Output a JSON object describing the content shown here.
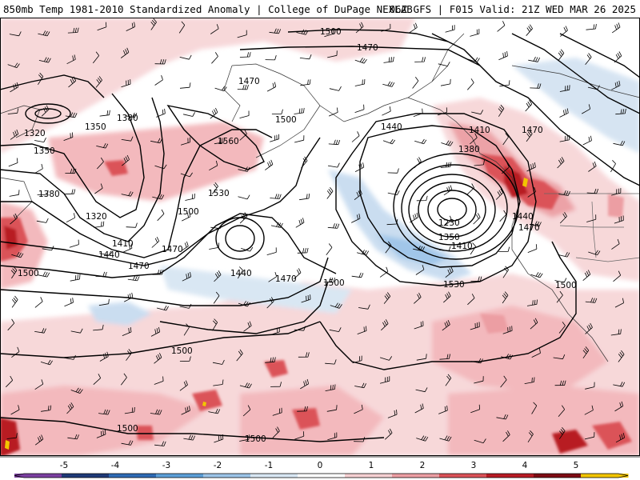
{
  "header": {
    "title_left": "850mb Temp 1981-2010 Standardized Anomaly | College of DuPage NEXLAB",
    "title_right": "06Z GFS | F015 Valid: 21Z WED MAR 26 2025"
  },
  "colorbar": {
    "ticks": [
      "-5",
      "-4",
      "-3",
      "-2",
      "-1",
      "0",
      "1",
      "2",
      "3",
      "4",
      "5"
    ],
    "colors": [
      "#7b3fa0",
      "#1f3a78",
      "#2f6bb5",
      "#5c9fd8",
      "#9cc4e8",
      "#d8e6f3",
      "#ffffff",
      "#f5d0d2",
      "#ec9ea3",
      "#db5258",
      "#b81b24",
      "#7e0c14",
      "#f2c500"
    ]
  },
  "contours": {
    "labels": [
      {
        "text": "1500"
      },
      {
        "text": "1470"
      },
      {
        "text": "1470"
      },
      {
        "text": "1440"
      },
      {
        "text": "1320"
      },
      {
        "text": "1350"
      },
      {
        "text": "1380"
      },
      {
        "text": "1500"
      },
      {
        "text": "1350"
      },
      {
        "text": "1560"
      },
      {
        "text": "1410"
      },
      {
        "text": "1470"
      },
      {
        "text": "1380"
      },
      {
        "text": "1380"
      },
      {
        "text": "1320"
      },
      {
        "text": "1530"
      },
      {
        "text": "1500"
      },
      {
        "text": "1410"
      },
      {
        "text": "1440"
      },
      {
        "text": "1470"
      },
      {
        "text": "1500"
      },
      {
        "text": "1470"
      },
      {
        "text": "1440"
      },
      {
        "text": "1470"
      },
      {
        "text": "1500"
      },
      {
        "text": "1230"
      },
      {
        "text": "1350"
      },
      {
        "text": "1410"
      },
      {
        "text": "1440"
      },
      {
        "text": "1470"
      },
      {
        "text": "1500"
      },
      {
        "text": "1530"
      },
      {
        "text": "1500"
      },
      {
        "text": "1500"
      },
      {
        "text": "1500"
      }
    ]
  }
}
